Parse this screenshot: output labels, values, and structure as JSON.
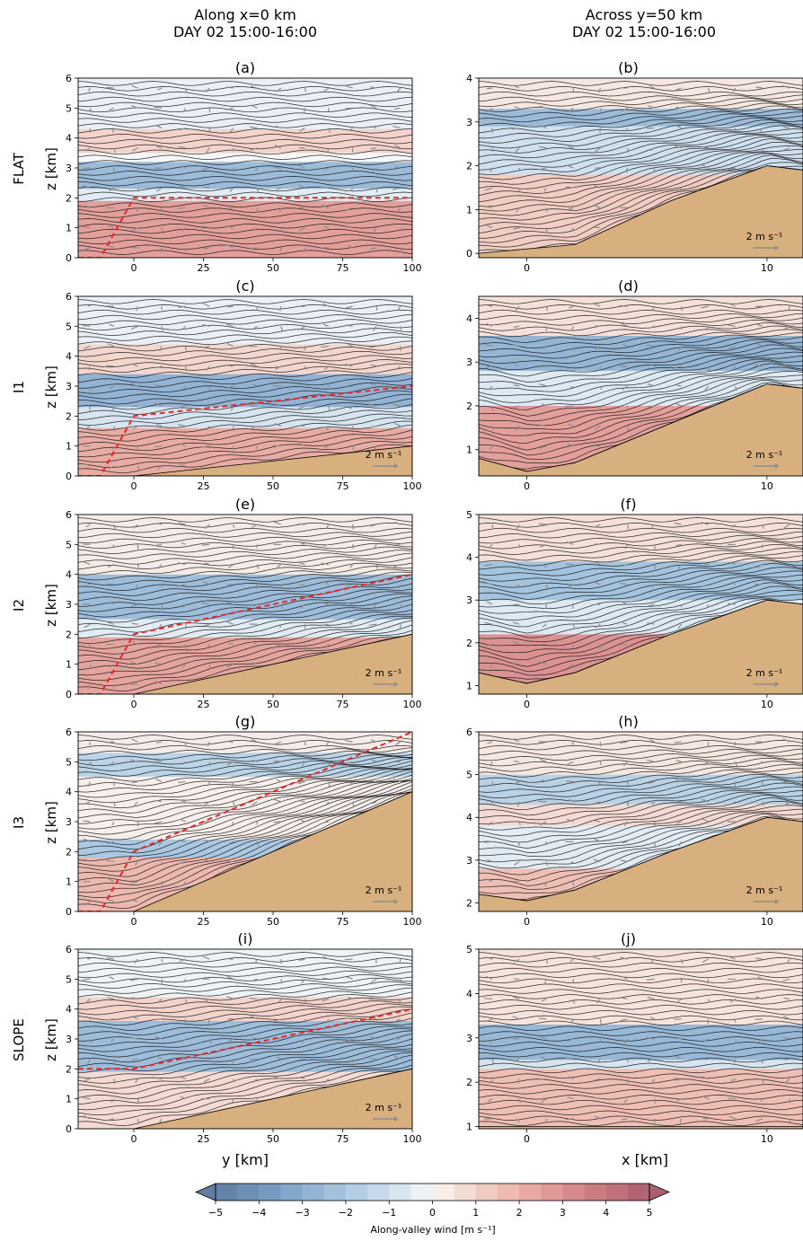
{
  "column_headers": [
    {
      "line1": "Along x=0 km",
      "line2": "DAY 02 15:00-16:00"
    },
    {
      "line1": "Across y=50 km",
      "line2": "DAY 02 15:00-16:00"
    }
  ],
  "row_labels": [
    "FLAT",
    "I1",
    "I2",
    "I3",
    "SLOPE"
  ],
  "ylabel_left": "z [km]",
  "xlabel_left": "y [km]",
  "xlabel_right": "x [km]",
  "wind_scale_label": "2 m s⁻¹",
  "colorbar": {
    "label": "Along-valley wind [m s⁻¹]",
    "min": -5,
    "max": 5,
    "step": 0.5,
    "ticks": [
      -5,
      -4,
      -3,
      -2,
      -1,
      0,
      1,
      2,
      3,
      4,
      5
    ],
    "tick_labels": [
      "−5",
      "−4",
      "−3",
      "−2",
      "−1",
      "0",
      "1",
      "2",
      "3",
      "4",
      "5"
    ],
    "extend": "both",
    "colors": {
      "neg_strong": "#6b89ab",
      "neg_mid": "#9dc0dc",
      "zero": "#f7f7f7",
      "pos_mid": "#e7a7a0",
      "pos_strong": "#b46874"
    }
  },
  "terrain_color": "#d8b07f",
  "profile_color": "#e8272b",
  "chart_data": [
    {
      "type": "heatmap",
      "panel": "(a)",
      "row": "FLAT",
      "column": "along",
      "x_range": [
        -20,
        100
      ],
      "y_range": [
        0,
        6
      ],
      "x_ticks": [
        0,
        25,
        50,
        75,
        100
      ],
      "y_ticks": [
        0,
        1,
        2,
        3,
        4,
        5,
        6
      ],
      "terrain": [
        [
          -20,
          0
        ],
        [
          100,
          0
        ]
      ],
      "profile_line": [
        [
          -20,
          0
        ],
        [
          -12,
          0
        ],
        [
          0,
          2
        ],
        [
          100,
          2
        ]
      ],
      "wind_bands": [
        [
          0,
          1.9,
          2.6
        ],
        [
          1.9,
          2.3,
          -0.5
        ],
        [
          2.3,
          3.2,
          -2.5
        ],
        [
          3.5,
          4.3,
          1.0
        ],
        [
          4.3,
          6,
          -0.3
        ]
      ],
      "show_scale": false
    },
    {
      "type": "heatmap",
      "panel": "(b)",
      "row": "FLAT",
      "column": "across",
      "x_range": [
        -2,
        11.5
      ],
      "y_range": [
        -0.1,
        4
      ],
      "x_ticks": [
        0,
        10
      ],
      "y_ticks": [
        0,
        1,
        2,
        3,
        4
      ],
      "terrain": [
        [
          -2,
          0
        ],
        [
          2,
          0.2
        ],
        [
          6,
          1.2
        ],
        [
          10,
          2.0
        ],
        [
          11.5,
          1.9
        ]
      ],
      "wind_bands": [
        [
          0,
          1.8,
          1.2
        ],
        [
          1.8,
          2.9,
          -1.0
        ],
        [
          2.9,
          3.3,
          -2.5
        ],
        [
          3.3,
          4,
          0.4
        ]
      ],
      "show_scale": true
    },
    {
      "type": "heatmap",
      "panel": "(c)",
      "row": "I1",
      "column": "along",
      "x_range": [
        -20,
        100
      ],
      "y_range": [
        0,
        6
      ],
      "x_ticks": [
        0,
        25,
        50,
        75,
        100
      ],
      "y_ticks": [
        0,
        1,
        2,
        3,
        4,
        5,
        6
      ],
      "terrain": [
        [
          -20,
          0
        ],
        [
          0,
          0
        ],
        [
          100,
          1
        ]
      ],
      "profile_line": [
        [
          -20,
          0
        ],
        [
          -12,
          0
        ],
        [
          0,
          2
        ],
        [
          100,
          3
        ]
      ],
      "wind_bands": [
        [
          0,
          1.6,
          2.2
        ],
        [
          1.6,
          2.3,
          -0.8
        ],
        [
          2.3,
          3.4,
          -2.8
        ],
        [
          3.4,
          4.4,
          0.9
        ],
        [
          4.4,
          6,
          -0.3
        ]
      ],
      "show_scale": true
    },
    {
      "type": "heatmap",
      "panel": "(d)",
      "row": "I1",
      "column": "across",
      "x_range": [
        -2,
        11.5
      ],
      "y_range": [
        0.4,
        4.5
      ],
      "x_ticks": [
        0,
        10
      ],
      "y_ticks": [
        1,
        2,
        3,
        4
      ],
      "terrain": [
        [
          -2,
          0.8
        ],
        [
          0,
          0.5
        ],
        [
          2,
          0.7
        ],
        [
          6,
          1.6
        ],
        [
          10,
          2.5
        ],
        [
          11.5,
          2.4
        ]
      ],
      "wind_bands": [
        [
          0.4,
          2.0,
          2.6
        ],
        [
          2.0,
          2.8,
          -0.6
        ],
        [
          2.8,
          3.6,
          -2.7
        ],
        [
          3.6,
          4.5,
          0.6
        ]
      ],
      "show_scale": true
    },
    {
      "type": "heatmap",
      "panel": "(e)",
      "row": "I2",
      "column": "along",
      "x_range": [
        -20,
        100
      ],
      "y_range": [
        0,
        6
      ],
      "x_ticks": [
        0,
        25,
        50,
        75,
        100
      ],
      "y_ticks": [
        0,
        1,
        2,
        3,
        4,
        5,
        6
      ],
      "terrain": [
        [
          -20,
          0
        ],
        [
          0,
          0
        ],
        [
          100,
          2
        ]
      ],
      "profile_line": [
        [
          -20,
          0
        ],
        [
          -12,
          0
        ],
        [
          0,
          2
        ],
        [
          100,
          4
        ]
      ],
      "wind_bands": [
        [
          0,
          1.9,
          2.4
        ],
        [
          1.9,
          2.5,
          -0.5
        ],
        [
          2.5,
          4.0,
          -2.4
        ],
        [
          4.0,
          6,
          0.3
        ]
      ],
      "show_scale": true
    },
    {
      "type": "heatmap",
      "panel": "(f)",
      "row": "I2",
      "column": "across",
      "x_range": [
        -2,
        11.5
      ],
      "y_range": [
        0.8,
        5
      ],
      "x_ticks": [
        0,
        10
      ],
      "y_ticks": [
        1,
        2,
        3,
        4,
        5
      ],
      "terrain": [
        [
          -2,
          1.3
        ],
        [
          0,
          1.05
        ],
        [
          2,
          1.3
        ],
        [
          6,
          2.2
        ],
        [
          10,
          3.0
        ],
        [
          11.5,
          2.9
        ]
      ],
      "wind_bands": [
        [
          0.8,
          2.2,
          3.0
        ],
        [
          2.2,
          3.0,
          -0.6
        ],
        [
          3.0,
          3.9,
          -2.2
        ],
        [
          3.9,
          5,
          0.6
        ]
      ],
      "show_scale": true
    },
    {
      "type": "heatmap",
      "panel": "(g)",
      "row": "I3",
      "column": "along",
      "x_range": [
        -20,
        100
      ],
      "y_range": [
        0,
        6
      ],
      "x_ticks": [
        0,
        25,
        50,
        75,
        100
      ],
      "y_ticks": [
        0,
        1,
        2,
        3,
        4,
        5,
        6
      ],
      "terrain": [
        [
          -20,
          0
        ],
        [
          0,
          0
        ],
        [
          100,
          4
        ]
      ],
      "profile_line": [
        [
          -20,
          0
        ],
        [
          -12,
          0
        ],
        [
          0,
          2
        ],
        [
          100,
          6
        ]
      ],
      "wind_bands": [
        [
          0,
          1.8,
          1.8
        ],
        [
          1.8,
          2.4,
          -2.0
        ],
        [
          2.4,
          4.5,
          0.2
        ],
        [
          4.5,
          5.3,
          -1.5
        ],
        [
          5.3,
          6,
          0.3
        ]
      ],
      "show_scale": true
    },
    {
      "type": "heatmap",
      "panel": "(h)",
      "row": "I3",
      "column": "across",
      "x_range": [
        -2,
        11.5
      ],
      "y_range": [
        1.8,
        6
      ],
      "x_ticks": [
        0,
        10
      ],
      "y_ticks": [
        2,
        3,
        4,
        5,
        6
      ],
      "terrain": [
        [
          -2,
          2.2
        ],
        [
          0,
          2.05
        ],
        [
          2,
          2.3
        ],
        [
          6,
          3.2
        ],
        [
          10,
          4.0
        ],
        [
          11.5,
          3.9
        ]
      ],
      "wind_bands": [
        [
          1.8,
          2.8,
          1.6
        ],
        [
          2.8,
          3.8,
          -0.5
        ],
        [
          3.8,
          4.3,
          0.8
        ],
        [
          4.3,
          5.0,
          -1.6
        ],
        [
          5.0,
          6,
          0.4
        ]
      ],
      "show_scale": true
    },
    {
      "type": "heatmap",
      "panel": "(i)",
      "row": "SLOPE",
      "column": "along",
      "x_range": [
        -20,
        100
      ],
      "y_range": [
        0,
        6
      ],
      "x_ticks": [
        0,
        25,
        50,
        75,
        100
      ],
      "y_ticks": [
        0,
        1,
        2,
        3,
        4,
        5,
        6
      ],
      "terrain": [
        [
          -20,
          0
        ],
        [
          0,
          0
        ],
        [
          100,
          2
        ]
      ],
      "profile_line": [
        [
          -20,
          2
        ],
        [
          0,
          2
        ],
        [
          100,
          4
        ]
      ],
      "wind_bands": [
        [
          0,
          1.9,
          0.8
        ],
        [
          1.9,
          3.6,
          -2.4
        ],
        [
          3.6,
          4.4,
          1.0
        ],
        [
          4.4,
          6,
          -0.2
        ]
      ],
      "show_scale": true
    },
    {
      "type": "heatmap",
      "panel": "(j)",
      "row": "SLOPE",
      "column": "across",
      "x_range": [
        -2,
        11.5
      ],
      "y_range": [
        0.95,
        5
      ],
      "x_ticks": [
        0,
        10
      ],
      "y_ticks": [
        1,
        2,
        3,
        4,
        5
      ],
      "terrain": [
        [
          -2,
          1.0
        ],
        [
          11.5,
          1.0
        ]
      ],
      "wind_bands": [
        [
          0.95,
          2.3,
          1.6
        ],
        [
          2.3,
          2.5,
          -0.8
        ],
        [
          2.5,
          3.3,
          -2.6
        ],
        [
          3.3,
          5,
          0.5
        ]
      ],
      "show_scale": false
    }
  ]
}
